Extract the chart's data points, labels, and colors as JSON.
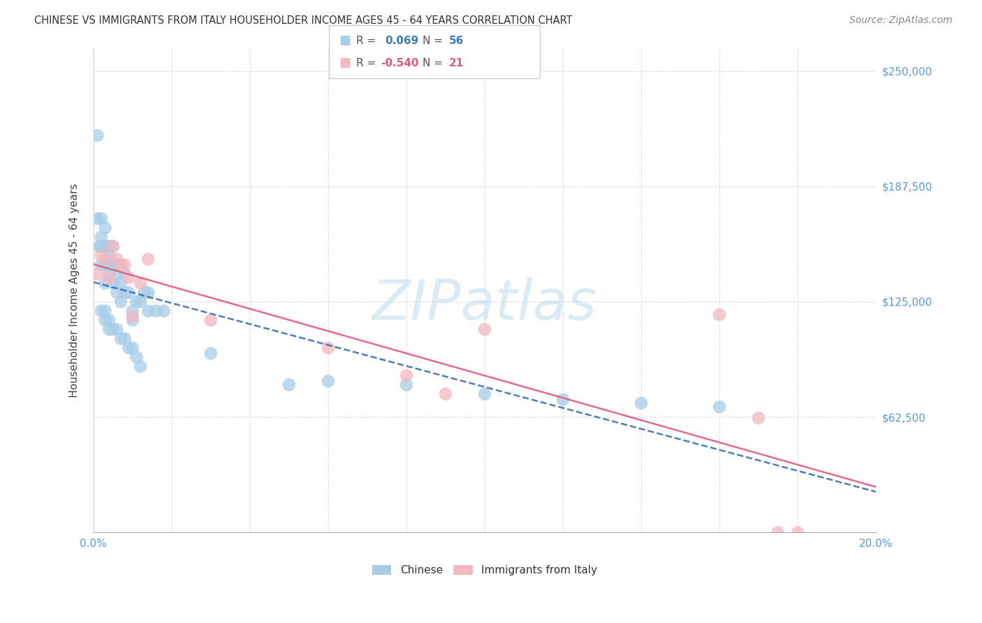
{
  "title": "CHINESE VS IMMIGRANTS FROM ITALY HOUSEHOLDER INCOME AGES 45 - 64 YEARS CORRELATION CHART",
  "source": "Source: ZipAtlas.com",
  "ylabel": "Householder Income Ages 45 - 64 years",
  "background_color": "#ffffff",
  "grid_color": "#e0e0e0",
  "watermark": "ZIPatlas",
  "xlim": [
    0.0,
    0.2
  ],
  "ylim": [
    0,
    262500
  ],
  "yticks": [
    0,
    62500,
    125000,
    187500,
    250000
  ],
  "ytick_labels": [
    "",
    "$62,500",
    "$125,000",
    "$187,500",
    "$250,000"
  ],
  "xticks": [
    0.0,
    0.02,
    0.04,
    0.06,
    0.08,
    0.1,
    0.12,
    0.14,
    0.16,
    0.18,
    0.2
  ],
  "xtick_labels": [
    "0.0%",
    "",
    "",
    "",
    "",
    "",
    "",
    "",
    "",
    "",
    "20.0%"
  ],
  "chinese_color": "#a8cde8",
  "italian_color": "#f4b8c1",
  "chinese_line_color": "#3a6fb0",
  "italian_line_color": "#e05a7a",
  "R_chinese": "0.069",
  "N_chinese": "56",
  "R_italian": "-0.540",
  "N_italian": "21",
  "chinese_x": [
    0.001,
    0.001,
    0.0015,
    0.002,
    0.002,
    0.002,
    0.002,
    0.003,
    0.003,
    0.003,
    0.003,
    0.004,
    0.004,
    0.004,
    0.005,
    0.005,
    0.005,
    0.006,
    0.006,
    0.006,
    0.007,
    0.007,
    0.007,
    0.008,
    0.008,
    0.009,
    0.01,
    0.01,
    0.011,
    0.012,
    0.013,
    0.014,
    0.014,
    0.016,
    0.018,
    0.002,
    0.003,
    0.003,
    0.004,
    0.004,
    0.005,
    0.006,
    0.007,
    0.008,
    0.009,
    0.01,
    0.011,
    0.012,
    0.03,
    0.05,
    0.06,
    0.08,
    0.1,
    0.12,
    0.14,
    0.16
  ],
  "chinese_y": [
    170000,
    215000,
    155000,
    170000,
    160000,
    155000,
    145000,
    165000,
    155000,
    145000,
    135000,
    155000,
    150000,
    140000,
    155000,
    145000,
    135000,
    145000,
    140000,
    130000,
    145000,
    135000,
    125000,
    140000,
    130000,
    130000,
    120000,
    115000,
    125000,
    125000,
    130000,
    130000,
    120000,
    120000,
    120000,
    120000,
    120000,
    115000,
    115000,
    110000,
    110000,
    110000,
    105000,
    105000,
    100000,
    100000,
    95000,
    90000,
    97000,
    80000,
    82000,
    80000,
    75000,
    72000,
    70000,
    68000
  ],
  "italian_x": [
    0.001,
    0.002,
    0.003,
    0.004,
    0.005,
    0.006,
    0.007,
    0.008,
    0.009,
    0.01,
    0.012,
    0.014,
    0.03,
    0.06,
    0.08,
    0.09,
    0.1,
    0.16,
    0.17,
    0.175,
    0.18
  ],
  "italian_y": [
    140000,
    150000,
    148000,
    138000,
    155000,
    148000,
    145000,
    145000,
    138000,
    117000,
    135000,
    148000,
    115000,
    100000,
    85000,
    75000,
    110000,
    118000,
    62000,
    0,
    0
  ]
}
